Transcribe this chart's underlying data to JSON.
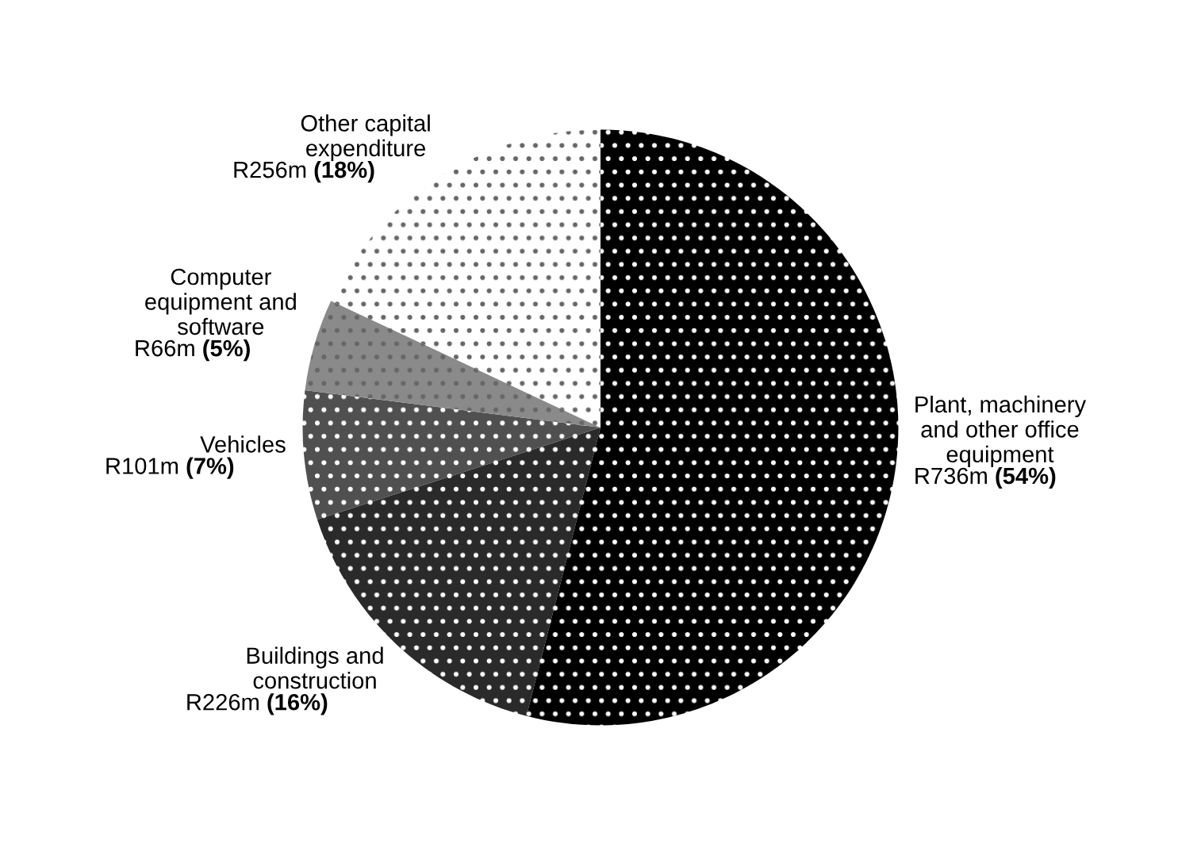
{
  "chart_data": {
    "type": "pie",
    "categories": [
      "Plant, machinery\nand other office\nequipment",
      "Buildings and\nconstruction",
      "Vehicles",
      "Computer\nequipment and\nsoftware",
      "Other capital\nexpenditure"
    ],
    "values": [
      54,
      16,
      7,
      5,
      18
    ],
    "value_labels": [
      "R736m (54%)",
      "R226m (16%)",
      "R101m (7%)",
      "R66m (5%)",
      "R256m (18%)"
    ],
    "colors": [
      "#000000",
      "#2a2a2a",
      "#505050",
      "#8a8a8a",
      "#ffffff"
    ],
    "legend": false
  }
}
